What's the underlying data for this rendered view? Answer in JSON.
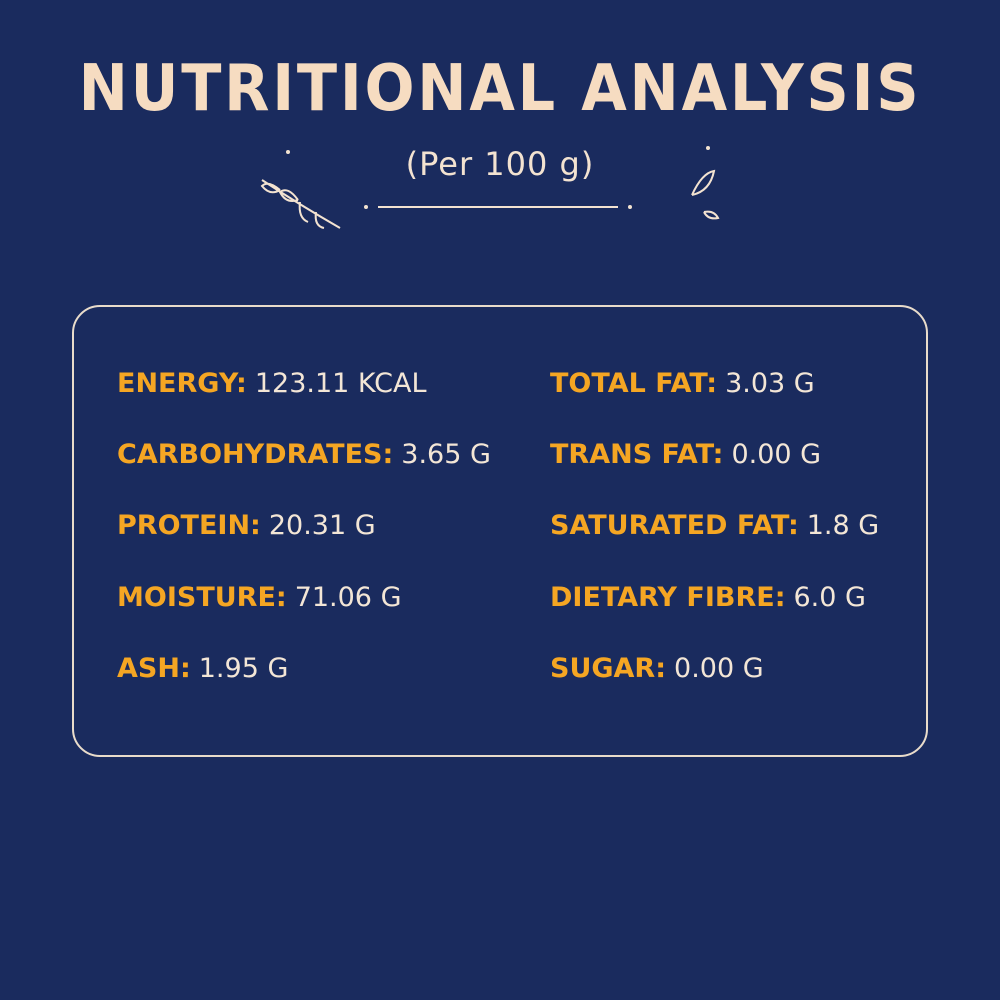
{
  "header": {
    "title": "NUTRITIONAL ANALYSIS",
    "subtitle": "(Per 100 g)"
  },
  "nutrients": {
    "left": [
      {
        "label": "ENERGY:",
        "value": "123.11 KCAL"
      },
      {
        "label": "CARBOHYDRATES:",
        "value": "3.65 G"
      },
      {
        "label": "PROTEIN:",
        "value": "20.31 G"
      },
      {
        "label": "MOISTURE:",
        "value": "71.06 G"
      },
      {
        "label": "ASH:",
        "value": "1.95 G"
      }
    ],
    "right": [
      {
        "label": "TOTAL FAT:",
        "value": "3.03 G"
      },
      {
        "label": "TRANS FAT:",
        "value": "0.00 G"
      },
      {
        "label": "SATURATED FAT:",
        "value": "1.8 G"
      },
      {
        "label": "DIETARY FIBRE:",
        "value": "6.0 G"
      },
      {
        "label": "SUGAR:",
        "value": "0.00 G"
      }
    ]
  }
}
